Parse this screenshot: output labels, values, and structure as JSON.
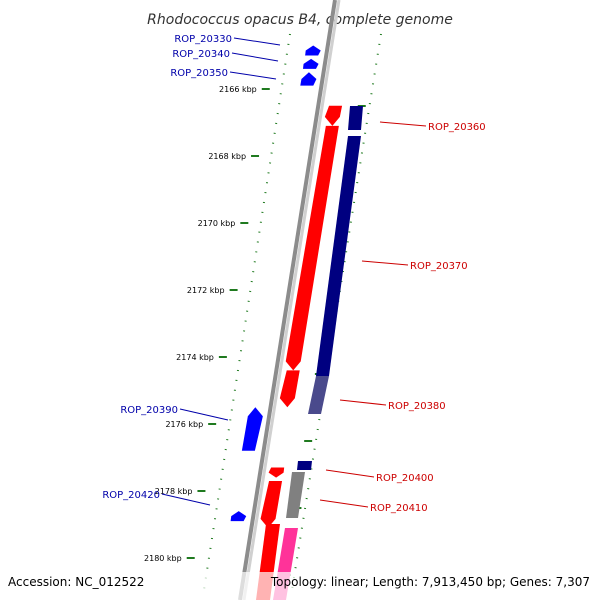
{
  "title": "Rhodococcus opacus B4, complete genome",
  "accession": "Accession: NC_012522",
  "topology": "Topology: linear; Length: 7,913,450 bp; Genes: 7,307",
  "colors": {
    "forward": "#0000ff",
    "reverse": "#ff0000",
    "navy": "#000080",
    "grey": "#808080",
    "pink": "#ff3399",
    "tick": "#1f7a1f",
    "backbone": "#999999"
  },
  "ticks": [
    {
      "kbp": 2166,
      "label": "2166 kbp"
    },
    {
      "kbp": 2168,
      "label": "2168 kbp"
    },
    {
      "kbp": 2170,
      "label": "2170 kbp"
    },
    {
      "kbp": 2172,
      "label": "2172 kbp"
    },
    {
      "kbp": 2174,
      "label": "2174 kbp"
    },
    {
      "kbp": 2176,
      "label": "2176 kbp"
    },
    {
      "kbp": 2178,
      "label": "2178 kbp"
    },
    {
      "kbp": 2180,
      "label": "2180 kbp"
    }
  ],
  "genes": [
    {
      "label": "ROP_20330",
      "color": "blue",
      "start": 2164.7,
      "end": 2165.0,
      "strand": "+"
    },
    {
      "label": "ROP_20340",
      "color": "blue",
      "start": 2165.1,
      "end": 2165.4,
      "strand": "+"
    },
    {
      "label": "ROP_20350",
      "color": "blue",
      "start": 2165.5,
      "end": 2165.9,
      "strand": "+"
    },
    {
      "label": "ROP_20360",
      "color": "red",
      "start": 2166.5,
      "end": 2167.1,
      "strand": "-"
    },
    {
      "label": "ROP_20370",
      "color": "red",
      "start": 2167.1,
      "end": 2174.4,
      "strand": "-"
    },
    {
      "label": "ROP_20380",
      "color": "red",
      "start": 2174.4,
      "end": 2175.5,
      "strand": "-"
    },
    {
      "label": "ROP_20390",
      "color": "blue",
      "start": 2175.5,
      "end": 2176.8,
      "strand": "+"
    },
    {
      "label": "ROP_20400",
      "color": "red",
      "start": 2177.3,
      "end": 2177.6,
      "strand": "-"
    },
    {
      "label": "ROP_20410",
      "color": "red",
      "start": 2177.7,
      "end": 2179.1,
      "strand": "-"
    },
    {
      "label": "ROP_20420",
      "color": "blue",
      "start": 2178.6,
      "end": 2178.9,
      "strand": "+"
    }
  ]
}
